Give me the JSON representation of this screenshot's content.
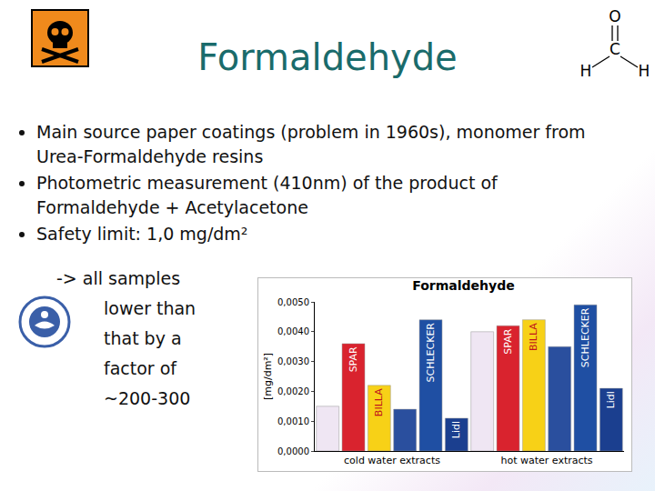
{
  "slide": {
    "title": "Formaldehyde",
    "bullets": [
      "Main source paper coatings (problem in 1960s), monomer from Urea-Formaldehyde resins",
      "Photometric measurement (410nm) of the product of Formaldehyde + Acetylacetone",
      "Safety limit: 1,0 mg/dm²"
    ],
    "continuation": [
      "-> all samples",
      "lower than",
      "that by a",
      "factor of",
      "~200-300"
    ],
    "formula_atoms": {
      "top": "O",
      "center": "C",
      "left": "H",
      "right": "H"
    }
  },
  "chart_data": {
    "type": "bar",
    "title": "Formaldehyde",
    "y_label": "[mg/dm²]",
    "groups": [
      "cold water extracts",
      "hot water extracts"
    ],
    "categories": [
      null,
      "SPAR",
      "BILLA",
      null,
      "SCHLECKER",
      "Lidl",
      null,
      "SPAR",
      "BILLA",
      null,
      "SCHLECKER",
      "Lidl"
    ],
    "values": [
      0.0015,
      0.0036,
      0.0022,
      0.0014,
      0.0044,
      0.0011,
      0.004,
      0.0042,
      0.0044,
      0.0035,
      0.0049,
      0.0021
    ],
    "colors": [
      "#efe6f3",
      "#d9232e",
      "#f7d117",
      "#2a4f9e",
      "#1f4fa3",
      "#1b3f8f",
      "#efe6f3",
      "#d9232e",
      "#f7d117",
      "#2a4f9e",
      "#1f4fa3",
      "#1b3f8f"
    ],
    "ylim": [
      0,
      0.005
    ],
    "yticks": [
      {
        "value": 0,
        "label": "0,0000"
      },
      {
        "value": 0.001,
        "label": "0,0010"
      },
      {
        "value": 0.002,
        "label": "0,0020"
      },
      {
        "value": 0.003,
        "label": "0,0030"
      },
      {
        "value": 0.004,
        "label": "0,0040"
      },
      {
        "value": 0.005,
        "label": "0,0050"
      }
    ],
    "grid": false
  }
}
